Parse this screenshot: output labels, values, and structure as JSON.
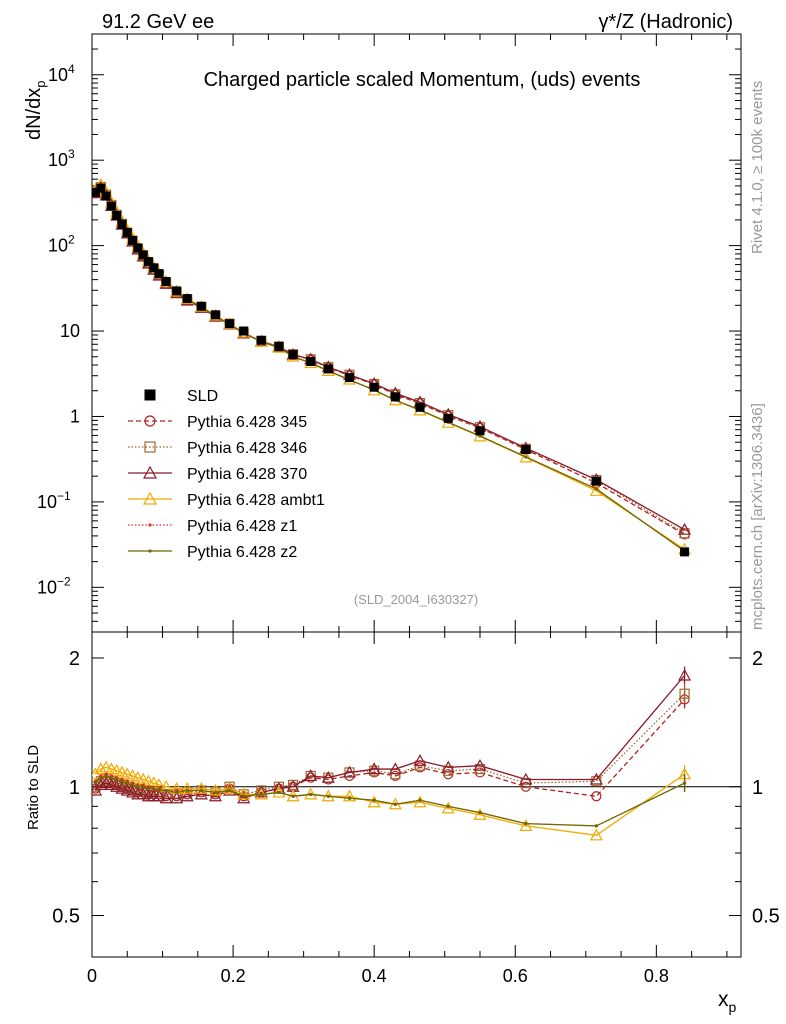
{
  "header": {
    "left": "91.2 GeV ee",
    "right": "γ*/Z (Hadronic)"
  },
  "side_labels": {
    "rivet": "Rivet 4.1.0, ≥ 100k events",
    "mcplots": "mcplots.cern.ch [arXiv:1306.3436]"
  },
  "chart_data": {
    "type": "line",
    "title": "Charged particle scaled Momentum, (uds) events",
    "analysis_tag": "(SLD_2004_I630327)",
    "xlabel": "x",
    "xlabel_sub": "p",
    "ylabel_main": "dN/dx",
    "ylabel_main_sub": "p",
    "ylabel_ratio": "Ratio to SLD",
    "xlim": [
      0,
      0.92
    ],
    "ylim_main": [
      0.003,
      30000
    ],
    "ylim_ratio": [
      0.4,
      2.3
    ],
    "yscale_main": "log",
    "yscale_ratio": "log",
    "legend_position": "middle-left",
    "x_ticks": [
      "0",
      "0.2",
      "0.4",
      "0.6",
      "0.8"
    ],
    "y_ticks_main": [
      {
        "v": 0.01,
        "base": "10",
        "exp": "−2"
      },
      {
        "v": 0.1,
        "base": "10",
        "exp": "−1"
      },
      {
        "v": 1,
        "base": "1",
        "exp": ""
      },
      {
        "v": 10,
        "base": "10",
        "exp": ""
      },
      {
        "v": 100,
        "base": "10",
        "exp": "2"
      },
      {
        "v": 1000,
        "base": "10",
        "exp": "3"
      },
      {
        "v": 10000,
        "base": "10",
        "exp": "4"
      }
    ],
    "y_ticks_ratio": [
      "0.5",
      "1",
      "2"
    ],
    "x": [
      0.005,
      0.0125,
      0.02,
      0.0275,
      0.035,
      0.0425,
      0.05,
      0.0575,
      0.065,
      0.0725,
      0.08,
      0.0875,
      0.095,
      0.105,
      0.12,
      0.135,
      0.155,
      0.175,
      0.195,
      0.215,
      0.24,
      0.265,
      0.285,
      0.31,
      0.335,
      0.365,
      0.4,
      0.43,
      0.465,
      0.505,
      0.55,
      0.615,
      0.715,
      0.84
    ],
    "data": {
      "name": "SLD",
      "values": [
        420,
        470,
        380,
        290,
        225,
        178,
        142,
        115,
        94,
        78,
        65,
        55,
        47,
        38,
        29.5,
        24,
        19.5,
        15.5,
        12.2,
        10,
        7.8,
        6.6,
        5.3,
        4.4,
        3.6,
        2.85,
        2.2,
        1.7,
        1.28,
        0.95,
        0.68,
        0.41,
        0.175,
        0.026
      ],
      "color": "#000000"
    },
    "series": [
      {
        "name": "Pythia 6.428 345",
        "color": "#b22222",
        "dash": "5,3",
        "marker": "circle-open",
        "ratio": [
          0.99,
          1.02,
          1.03,
          1.02,
          1.01,
          1.0,
          0.99,
          0.98,
          0.97,
          0.97,
          0.96,
          0.96,
          0.96,
          0.95,
          0.95,
          0.96,
          0.97,
          0.96,
          0.99,
          0.95,
          0.97,
          0.99,
          1.0,
          1.05,
          1.04,
          1.06,
          1.08,
          1.06,
          1.11,
          1.07,
          1.08,
          1.0,
          0.95,
          1.6
        ]
      },
      {
        "name": "Pythia 6.428 346",
        "color": "#a0682c",
        "dash": "1.5,2",
        "marker": "square-open",
        "ratio": [
          1.0,
          1.03,
          1.04,
          1.03,
          1.02,
          1.01,
          1.0,
          0.99,
          0.98,
          0.98,
          0.97,
          0.97,
          0.97,
          0.96,
          0.96,
          0.97,
          0.98,
          0.97,
          1.0,
          0.96,
          0.98,
          1.0,
          1.01,
          1.06,
          1.05,
          1.08,
          1.09,
          1.07,
          1.12,
          1.09,
          1.1,
          1.02,
          1.03,
          1.65
        ]
      },
      {
        "name": "Pythia 6.428 370",
        "color": "#8b1a2b",
        "dash": "",
        "marker": "triangle-open",
        "ratio": [
          0.98,
          1.01,
          1.02,
          1.01,
          1.0,
          0.99,
          0.98,
          0.97,
          0.96,
          0.96,
          0.95,
          0.95,
          0.95,
          0.94,
          0.94,
          0.95,
          0.96,
          0.95,
          0.98,
          0.94,
          0.97,
          0.99,
          1.0,
          1.06,
          1.05,
          1.08,
          1.1,
          1.1,
          1.15,
          1.11,
          1.12,
          1.04,
          1.04,
          1.82
        ]
      },
      {
        "name": "Pythia 6.428 ambt1",
        "color": "#f2a900",
        "dash": "",
        "marker": "triangle-open",
        "ratio": [
          1.07,
          1.1,
          1.11,
          1.1,
          1.09,
          1.08,
          1.07,
          1.06,
          1.05,
          1.04,
          1.03,
          1.02,
          1.01,
          1.0,
          0.99,
          0.99,
          0.99,
          0.98,
          0.99,
          0.96,
          0.96,
          0.97,
          0.95,
          0.96,
          0.95,
          0.95,
          0.92,
          0.91,
          0.92,
          0.89,
          0.86,
          0.81,
          0.77,
          1.07
        ]
      },
      {
        "name": "Pythia 6.428 z1",
        "color": "#e03020",
        "dash": "1.5,2",
        "marker": "dot",
        "ratio": [
          1.03,
          1.06,
          1.07,
          1.06,
          1.05,
          1.04,
          1.03,
          1.02,
          1.01,
          1.01,
          1.0,
          0.99,
          0.99,
          0.98,
          0.98,
          0.98,
          0.98,
          0.97,
          0.98,
          0.95,
          0.96,
          0.97,
          0.95,
          0.96,
          0.95,
          0.94,
          0.93,
          0.91,
          0.93,
          0.9,
          0.87,
          0.82,
          0.81,
          1.02
        ]
      },
      {
        "name": "Pythia 6.428 z2",
        "color": "#6b6b00",
        "dash": "",
        "marker": "dot",
        "ratio": [
          1.02,
          1.05,
          1.06,
          1.05,
          1.04,
          1.03,
          1.02,
          1.01,
          1.0,
          1.0,
          0.99,
          0.99,
          0.98,
          0.98,
          0.97,
          0.98,
          0.98,
          0.97,
          0.98,
          0.95,
          0.96,
          0.97,
          0.95,
          0.96,
          0.95,
          0.94,
          0.93,
          0.91,
          0.93,
          0.9,
          0.87,
          0.82,
          0.81,
          1.02
        ]
      }
    ]
  }
}
